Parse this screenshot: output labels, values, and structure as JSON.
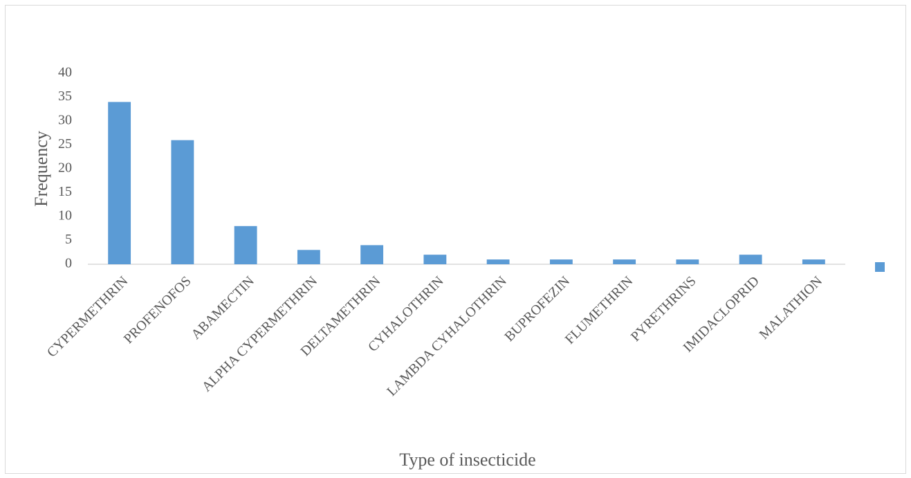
{
  "chart_data": {
    "type": "bar",
    "x_label": "Type of insecticide",
    "y_label": "Frequency",
    "categories": [
      "CYPERMETHRIN",
      "PROFENOFOS",
      "ABAMECTIN",
      "ALPHA CYPERMETHRIN",
      "DELTAMETHRIN",
      "CYHALOTHRIN",
      "LAMBDA CYHALOTHRIN",
      "BUPROFEZIN",
      "FLUMETHRIN",
      "PYRETHRINS",
      "IMIDACLOPRID",
      "MALATHION"
    ],
    "values": [
      34,
      26,
      8,
      3,
      4,
      2,
      1,
      1,
      1,
      1,
      2,
      1
    ],
    "color": "#5b9bd5",
    "ylim": [
      0,
      40
    ],
    "yticks": [
      0,
      5,
      10,
      15,
      20,
      25,
      30,
      35,
      40
    ],
    "grid": false,
    "legend": "right"
  }
}
